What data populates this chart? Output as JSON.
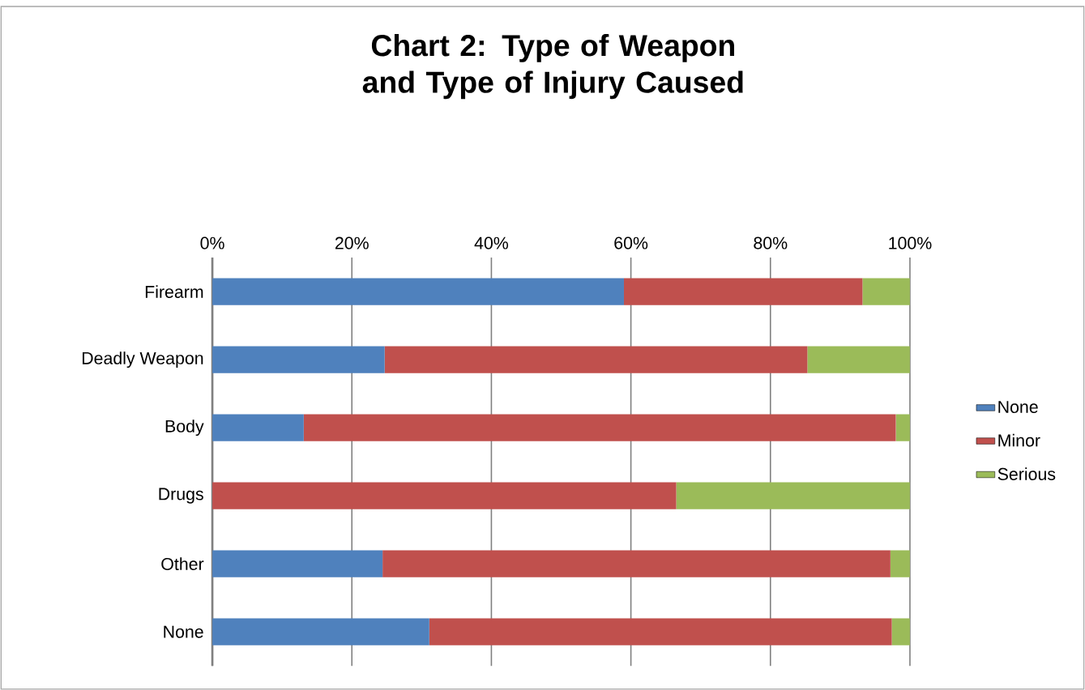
{
  "chart_data": {
    "type": "bar",
    "title": "Chart 2: Type of Weapon and Type of Injury Caused",
    "orientation": "horizontal",
    "stacked": true,
    "categories": [
      "Firearm",
      "Deadly Weapon",
      "Body",
      "Drugs",
      "Other",
      "None"
    ],
    "series": [
      {
        "name": "None",
        "color": "#4f81bd",
        "values": [
          59,
          24.7,
          13.1,
          0,
          24.4,
          31.1
        ]
      },
      {
        "name": "Minor",
        "color": "#c0504d",
        "values": [
          34.2,
          60.6,
          84.9,
          66.5,
          72.8,
          66.3
        ]
      },
      {
        "name": "Serious",
        "color": "#9bbb59",
        "values": [
          6.8,
          14.7,
          2.0,
          33.5,
          2.8,
          2.6
        ]
      }
    ],
    "xlim": [
      0,
      100
    ],
    "xticks": [
      {
        "value": 0,
        "label": "0%"
      },
      {
        "value": 20,
        "label": "20%"
      },
      {
        "value": 40,
        "label": "40%"
      },
      {
        "value": 60,
        "label": "60%"
      },
      {
        "value": 80,
        "label": "80%"
      },
      {
        "value": 100,
        "label": "100%"
      }
    ],
    "grid": "x",
    "legend": "right"
  }
}
